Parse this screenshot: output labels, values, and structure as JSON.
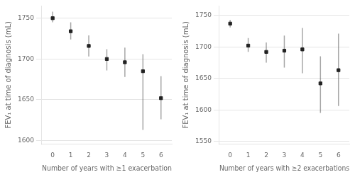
{
  "chart_data": [
    {
      "type": "scatter",
      "xlabel": "Number of years with ≥1 exacerbation",
      "ylabel": "FEV₁ at time of diagnosis (mL)",
      "x": [
        0,
        1,
        2,
        3,
        4,
        5,
        6
      ],
      "series": [
        {
          "values": [
            1750,
            1734,
            1716,
            1700,
            1696,
            1685,
            1652
          ],
          "ci_low": [
            1745,
            1724,
            1703,
            1686,
            1678,
            1613,
            1626
          ],
          "ci_high": [
            1758,
            1745,
            1729,
            1712,
            1714,
            1706,
            1679
          ],
          "color": "#222222",
          "marker": "square"
        }
      ],
      "xlim": [
        -0.6,
        6.6
      ],
      "xticks": [
        0,
        1,
        2,
        3,
        4,
        5,
        6
      ],
      "ylim": [
        1596,
        1765
      ],
      "yticks": [
        1600,
        1650,
        1700,
        1750
      ],
      "grid": "y"
    },
    {
      "type": "scatter",
      "xlabel": "Number of years with ≥2 exacerbations",
      "ylabel": "FEV₁ at time of diagnosis (mL)",
      "x": [
        0,
        1,
        2,
        3,
        4,
        5,
        6
      ],
      "series": [
        {
          "values": [
            1737,
            1702,
            1692,
            1694,
            1696,
            1642,
            1663
          ],
          "ci_low": [
            1731,
            1692,
            1675,
            1667,
            1658,
            1595,
            1606
          ],
          "ci_high": [
            1743,
            1714,
            1707,
            1718,
            1730,
            1685,
            1721
          ],
          "color": "#222222",
          "marker": "square"
        }
      ],
      "xlim": [
        -0.6,
        6.6
      ],
      "xticks": [
        0,
        1,
        2,
        3,
        4,
        5,
        6
      ],
      "ylim": [
        1546,
        1765
      ],
      "yticks": [
        1550,
        1600,
        1650,
        1700,
        1750
      ],
      "grid": "y"
    }
  ]
}
